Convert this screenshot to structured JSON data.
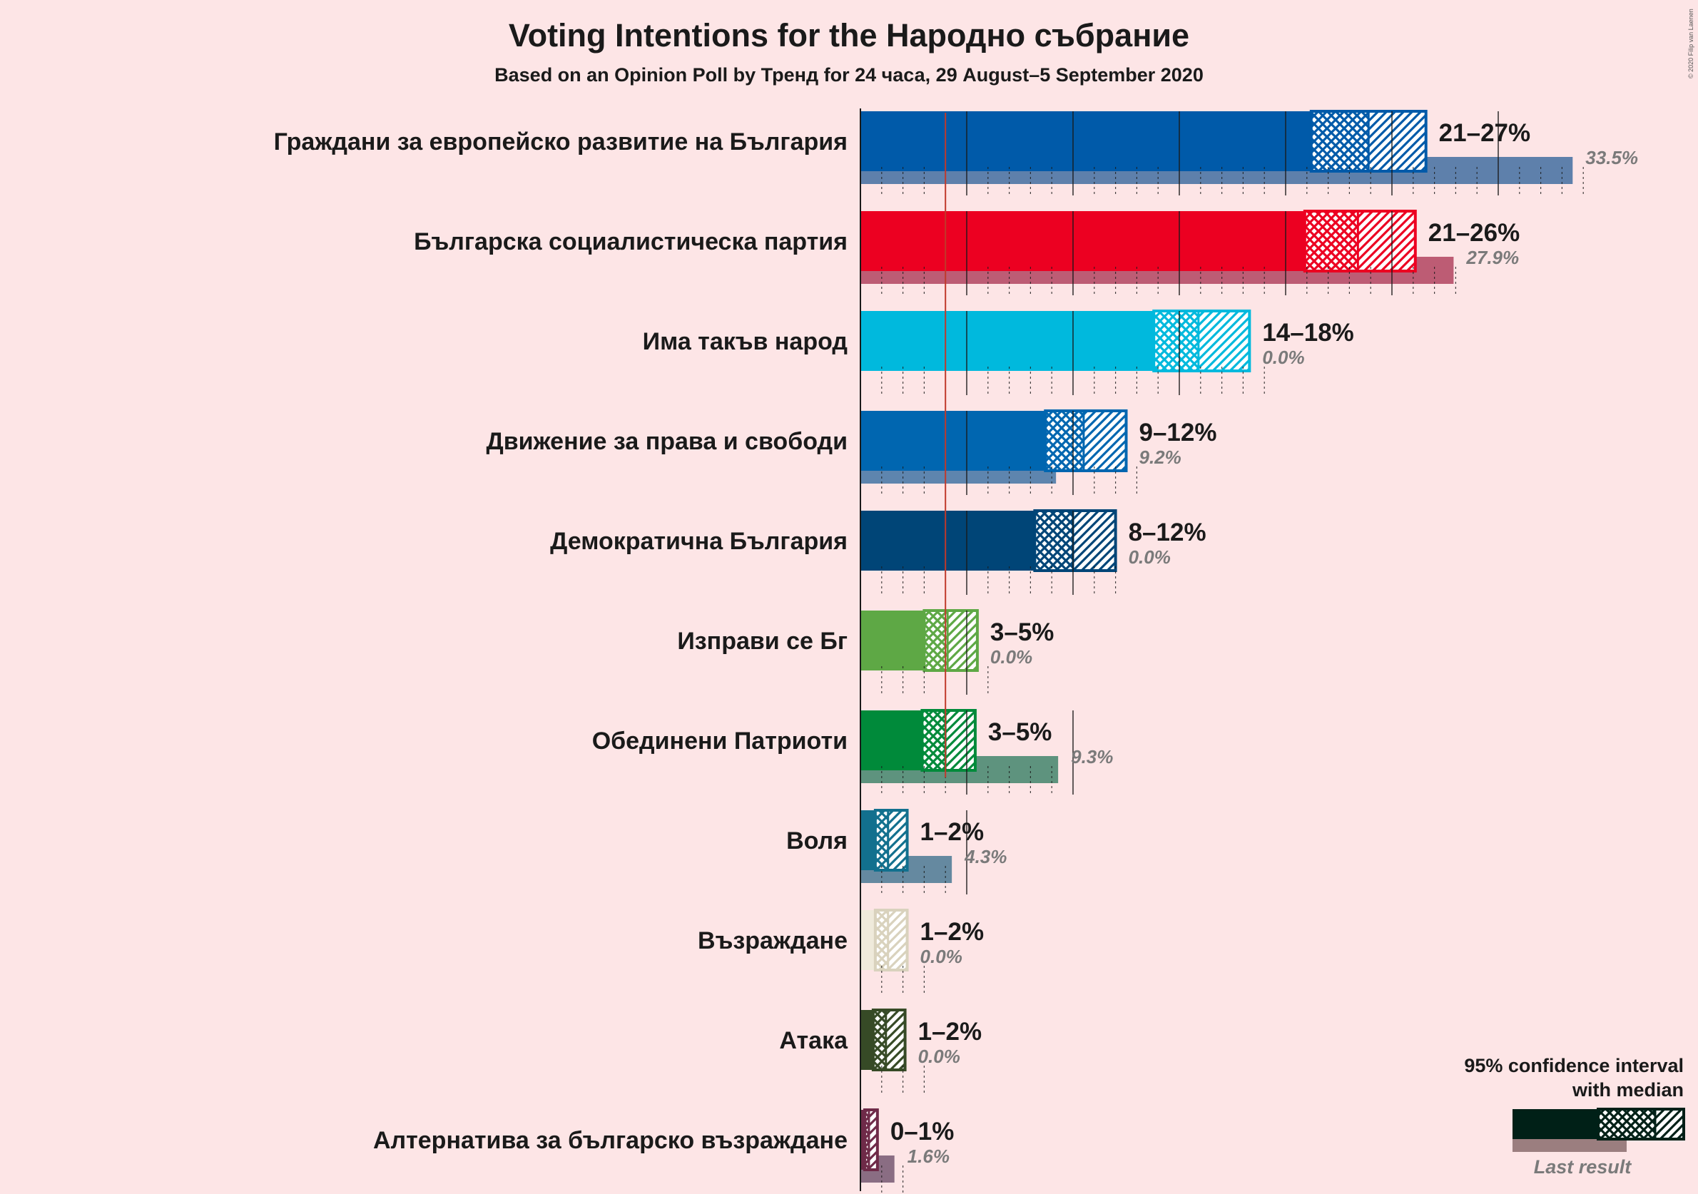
{
  "chart_data": {
    "type": "bar",
    "title": "Voting Intentions for the Народно събрание",
    "subtitle": "Based on an Opinion Poll by Тренд for 24 часа, 29 August–5 September 2020",
    "copyright": "© 2020 Filip van Laenen",
    "threshold": 4,
    "xlim": [
      0,
      35
    ],
    "parties": [
      {
        "name": "Граждани за европейско развитие на България",
        "low": 21.2,
        "median": 23.9,
        "high": 26.6,
        "range_label": "21–27%",
        "last": 33.5,
        "last_label": "33.5%",
        "color": "#005aa9"
      },
      {
        "name": "Българска социалистическа партия",
        "low": 20.9,
        "median": 23.4,
        "high": 26.1,
        "range_label": "21–26%",
        "last": 27.9,
        "last_label": "27.9%",
        "color": "#ec0021"
      },
      {
        "name": "Има такъв народ",
        "low": 13.8,
        "median": 15.9,
        "high": 18.3,
        "range_label": "14–18%",
        "last": 0.0,
        "last_label": "0.0%",
        "color": "#00b9dd"
      },
      {
        "name": "Движение за права и свободи",
        "low": 8.7,
        "median": 10.5,
        "high": 12.5,
        "range_label": "9–12%",
        "last": 9.2,
        "last_label": "9.2%",
        "color": "#0066b0"
      },
      {
        "name": "Демократична България",
        "low": 8.2,
        "median": 10.0,
        "high": 12.0,
        "range_label": "8–12%",
        "last": 0.0,
        "last_label": "0.0%",
        "color": "#004577"
      },
      {
        "name": "Изправи се Бг",
        "low": 3.0,
        "median": 4.1,
        "high": 5.5,
        "range_label": "3–5%",
        "last": 0.0,
        "last_label": "0.0%",
        "color": "#5ea845"
      },
      {
        "name": "Обединени Патриоти",
        "low": 2.9,
        "median": 4.0,
        "high": 5.4,
        "range_label": "3–5%",
        "last": 9.3,
        "last_label": "9.3%",
        "color": "#008a3a"
      },
      {
        "name": "Воля",
        "low": 0.7,
        "median": 1.3,
        "high": 2.2,
        "range_label": "1–2%",
        "last": 4.3,
        "last_label": "4.3%",
        "color": "#12708e"
      },
      {
        "name": "Възраждане",
        "low": 0.7,
        "median": 1.3,
        "high": 2.2,
        "range_label": "1–2%",
        "last": 0.0,
        "last_label": "0.0%",
        "color": "#efeadb"
      },
      {
        "name": "Атака",
        "low": 0.6,
        "median": 1.2,
        "high": 2.1,
        "range_label": "1–2%",
        "last": 0.0,
        "last_label": "0.0%",
        "color": "#364a26"
      },
      {
        "name": "Алтернатива за българско възраждане",
        "low": 0.2,
        "median": 0.4,
        "high": 0.8,
        "range_label": "0–1%",
        "last": 1.6,
        "last_label": "1.6%",
        "color": "#6e2a48"
      }
    ]
  },
  "legend": {
    "line1": "95% confidence interval",
    "line2": "with median",
    "last_result": "Last result",
    "color": "#002017"
  }
}
